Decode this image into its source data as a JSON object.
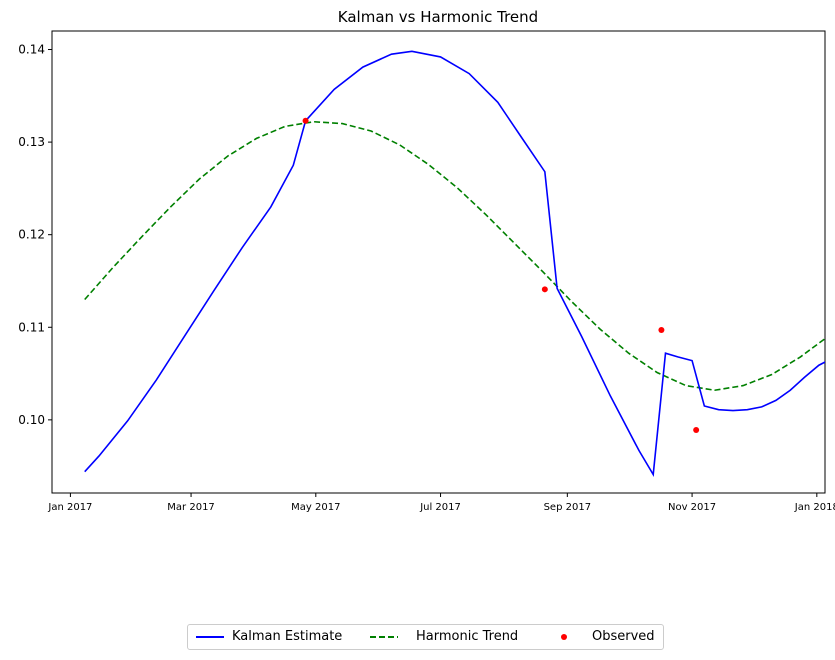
{
  "chart_data": {
    "type": "line",
    "title": "Kalman vs Harmonic Trend",
    "xlabel": "",
    "ylabel": "",
    "xlim": [
      "2016-12-23",
      "2018-01-05"
    ],
    "ylim": [
      0.0921,
      0.142
    ],
    "x_ticks": [
      "2017-01-01",
      "2017-03-01",
      "2017-05-01",
      "2017-07-01",
      "2017-09-01",
      "2017-11-01",
      "2018-01-01"
    ],
    "x_tick_labels": [
      "Jan 2017",
      "Mar 2017",
      "May 2017",
      "Jul 2017",
      "Sep 2017",
      "Nov 2017",
      "Jan 2018"
    ],
    "y_ticks": [
      0.1,
      0.11,
      0.12,
      0.13,
      0.14
    ],
    "y_tick_labels": [
      "0.10",
      "0.11",
      "0.12",
      "0.13",
      "0.14"
    ],
    "grid": false,
    "legend_position": "bottom-center",
    "series": [
      {
        "name": "Kalman Estimate",
        "style": "solid",
        "color": "#0000ff",
        "points": [
          [
            "2017-01-08",
            0.0944
          ],
          [
            "2017-01-15",
            0.0961
          ],
          [
            "2017-01-29",
            0.0999
          ],
          [
            "2017-02-12",
            0.1043
          ],
          [
            "2017-02-26",
            0.1091
          ],
          [
            "2017-03-12",
            0.1139
          ],
          [
            "2017-03-26",
            0.1186
          ],
          [
            "2017-04-09",
            0.123
          ],
          [
            "2017-04-20",
            0.1275
          ],
          [
            "2017-04-26",
            0.1323
          ],
          [
            "2017-05-10",
            0.1357
          ],
          [
            "2017-05-24",
            0.1381
          ],
          [
            "2017-06-07",
            0.1395
          ],
          [
            "2017-06-17",
            0.1398
          ],
          [
            "2017-07-01",
            0.1392
          ],
          [
            "2017-07-15",
            0.1374
          ],
          [
            "2017-07-29",
            0.1343
          ],
          [
            "2017-08-09",
            0.1307
          ],
          [
            "2017-08-21",
            0.1268
          ],
          [
            "2017-08-27",
            0.1142
          ],
          [
            "2017-09-08",
            0.109
          ],
          [
            "2017-09-22",
            0.1026
          ],
          [
            "2017-10-06",
            0.0967
          ],
          [
            "2017-10-13",
            0.0941
          ],
          [
            "2017-10-19",
            0.1072
          ],
          [
            "2017-10-25",
            0.1068
          ],
          [
            "2017-11-01",
            0.1064
          ],
          [
            "2017-11-07",
            0.1015
          ],
          [
            "2017-11-14",
            0.1011
          ],
          [
            "2017-11-21",
            0.101
          ],
          [
            "2017-11-28",
            0.1011
          ],
          [
            "2017-12-05",
            0.1014
          ],
          [
            "2017-12-12",
            0.1021
          ],
          [
            "2017-12-19",
            0.1032
          ],
          [
            "2017-12-26",
            0.1046
          ],
          [
            "2018-01-02",
            0.1059
          ],
          [
            "2018-01-09",
            0.1067
          ]
        ]
      },
      {
        "name": "Harmonic Trend",
        "style": "dashed",
        "color": "#008000",
        "points": [
          [
            "2017-01-08",
            0.113
          ],
          [
            "2017-01-22",
            0.1165
          ],
          [
            "2017-02-05",
            0.1198
          ],
          [
            "2017-02-19",
            0.123
          ],
          [
            "2017-03-05",
            0.126
          ],
          [
            "2017-03-19",
            0.1285
          ],
          [
            "2017-04-02",
            0.1304
          ],
          [
            "2017-04-16",
            0.1317
          ],
          [
            "2017-04-30",
            0.1322
          ],
          [
            "2017-05-14",
            0.132
          ],
          [
            "2017-05-28",
            0.1312
          ],
          [
            "2017-06-11",
            0.1297
          ],
          [
            "2017-06-25",
            0.1276
          ],
          [
            "2017-07-09",
            0.1251
          ],
          [
            "2017-07-23",
            0.1222
          ],
          [
            "2017-08-06",
            0.1191
          ],
          [
            "2017-08-20",
            0.116
          ],
          [
            "2017-09-03",
            0.1128
          ],
          [
            "2017-09-17",
            0.1098
          ],
          [
            "2017-10-01",
            0.1072
          ],
          [
            "2017-10-15",
            0.1051
          ],
          [
            "2017-10-29",
            0.1037
          ],
          [
            "2017-11-12",
            0.1032
          ],
          [
            "2017-11-26",
            0.1037
          ],
          [
            "2017-12-10",
            0.1049
          ],
          [
            "2017-12-24",
            0.1068
          ],
          [
            "2018-01-07",
            0.1091
          ],
          [
            "2018-01-10",
            0.1105
          ]
        ]
      },
      {
        "name": "Observed",
        "style": "markers",
        "color": "#ff0000",
        "points": [
          [
            "2017-04-26",
            0.1323
          ],
          [
            "2017-08-21",
            0.1141
          ],
          [
            "2017-10-17",
            0.1097
          ],
          [
            "2017-11-03",
            0.0989
          ]
        ]
      }
    ]
  }
}
